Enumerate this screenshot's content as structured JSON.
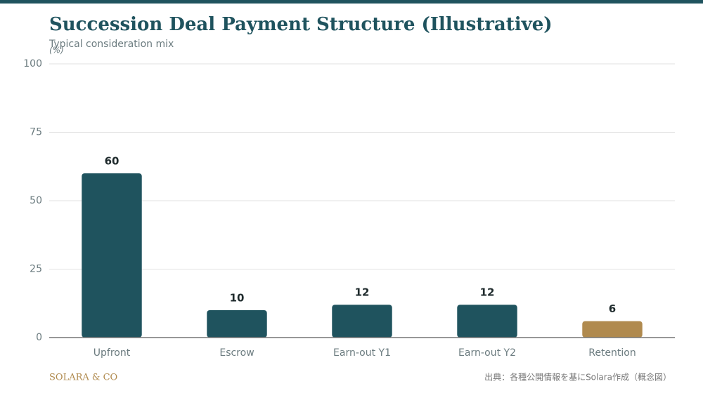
{
  "chart_data": {
    "type": "bar",
    "title": "Succession Deal Payment Structure (Illustrative)",
    "subtitle": "Typical consideration mix",
    "y_unit": "(%)",
    "categories": [
      "Upfront",
      "Escrow",
      "Earn-out Y1",
      "Earn-out Y2",
      "Retention"
    ],
    "values": [
      60,
      10,
      12,
      12,
      6
    ],
    "colors": [
      "#1f535e",
      "#1f535e",
      "#1f535e",
      "#1f535e",
      "#b08a4e"
    ],
    "ylim": [
      0,
      100
    ],
    "yticks": [
      0,
      25,
      50,
      75,
      100
    ],
    "grid": true,
    "brand": "SOLARA & CO",
    "source": "出典：各種公開情報を基にSolara作成（概念図）"
  }
}
